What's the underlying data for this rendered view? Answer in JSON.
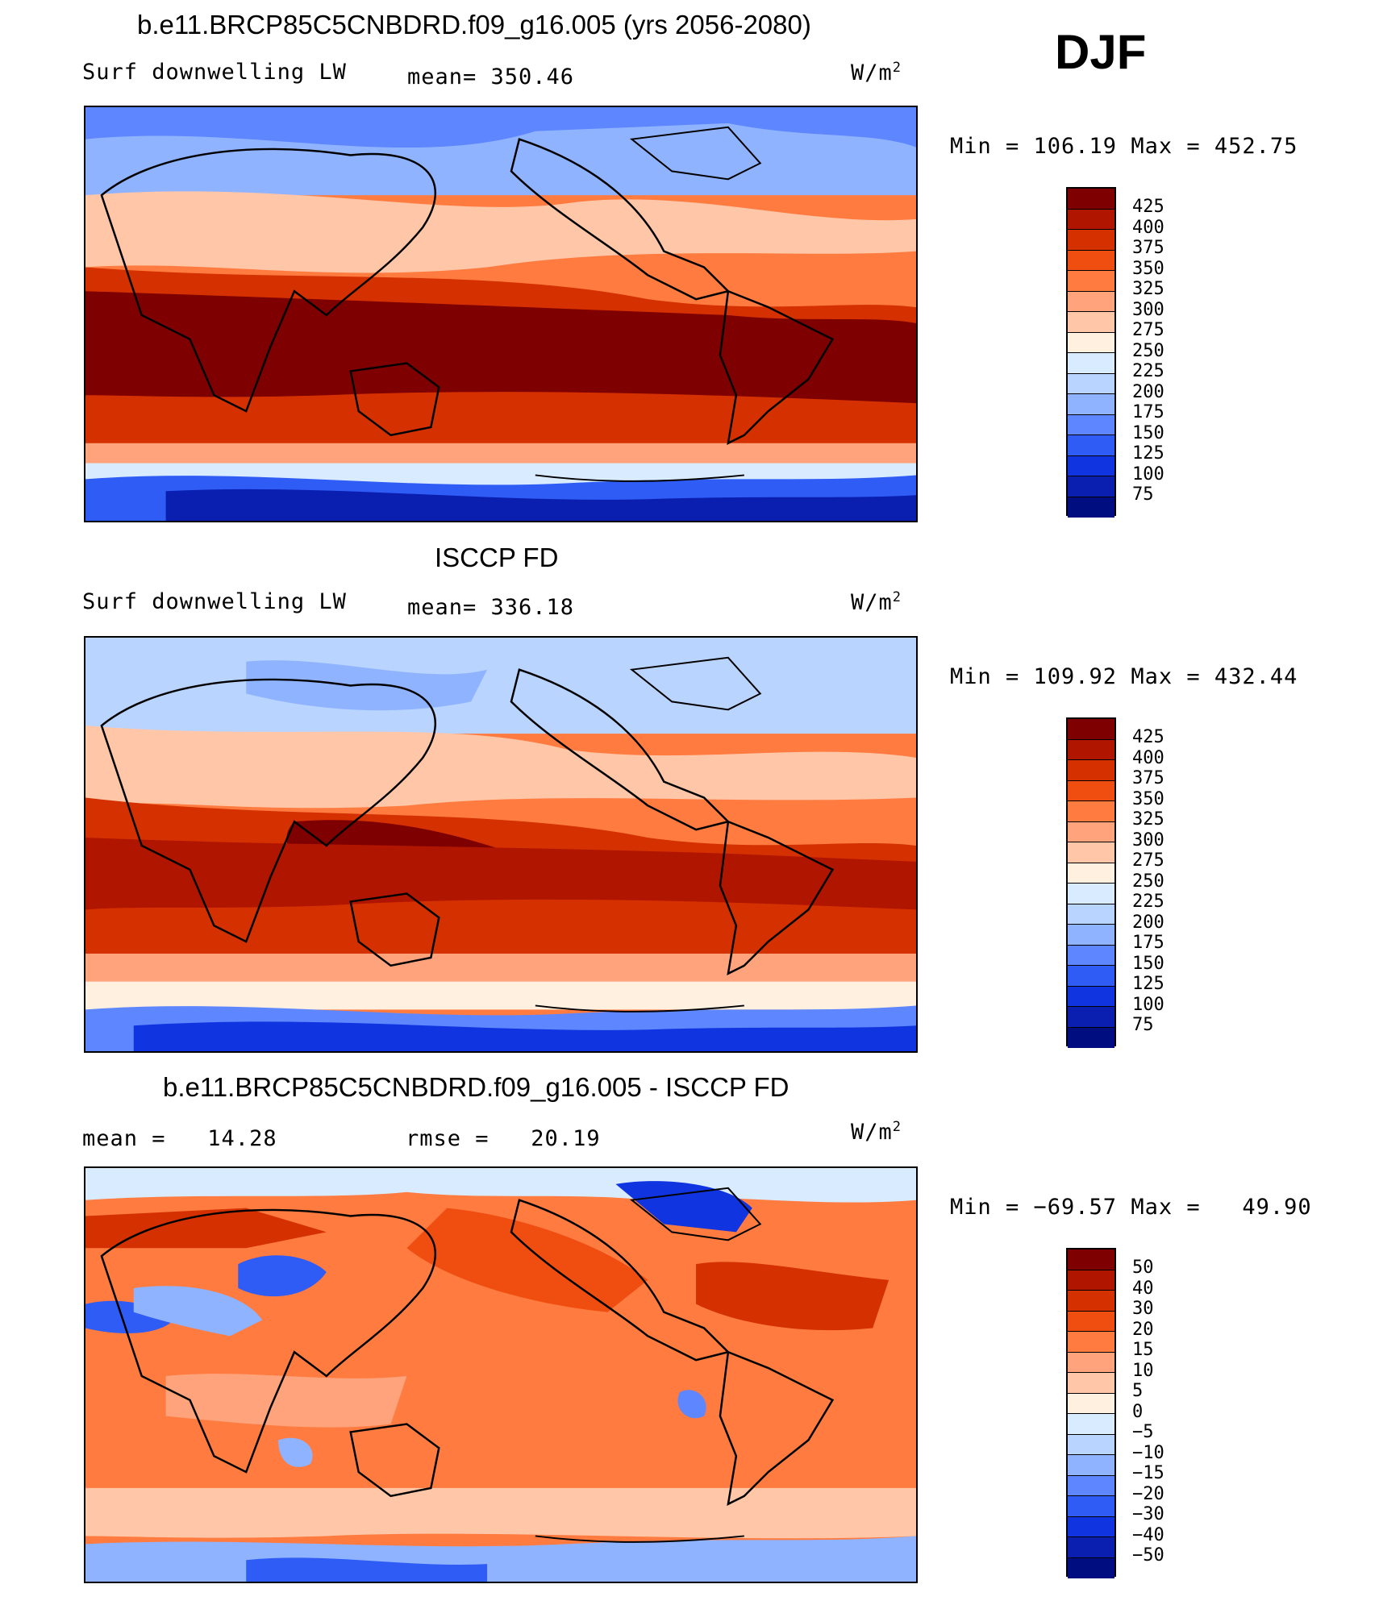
{
  "season": "DJF",
  "panels": [
    {
      "title": "b.e11.BRCP85C5CNBDRD.f09_g16.005 (yrs 2056-2080)",
      "left_label": "Surf downwelling LW",
      "center_label": "mean= 350.46",
      "units": "W/m",
      "units_sup": "2",
      "minmax": "Min = 106.19 Max = 452.75",
      "colorbar_labels": [
        "425",
        "400",
        "375",
        "350",
        "325",
        "300",
        "275",
        "250",
        "225",
        "200",
        "175",
        "150",
        "125",
        "100",
        "75"
      ]
    },
    {
      "title": "ISCCP FD",
      "left_label": "Surf downwelling LW",
      "center_label": "mean= 336.18",
      "units": "W/m",
      "units_sup": "2",
      "minmax": "Min = 109.92 Max = 432.44",
      "colorbar_labels": [
        "425",
        "400",
        "375",
        "350",
        "325",
        "300",
        "275",
        "250",
        "225",
        "200",
        "175",
        "150",
        "125",
        "100",
        "75"
      ]
    },
    {
      "title": "b.e11.BRCP85C5CNBDRD.f09_g16.005 - ISCCP FD",
      "left_label": "mean =   14.28",
      "center_label": "rmse =   20.19",
      "units": "W/m",
      "units_sup": "2",
      "minmax": "Min = −69.57 Max =   49.90",
      "colorbar_labels": [
        "50",
        "40",
        "30",
        "20",
        "15",
        "10",
        "5",
        "0",
        "−5",
        "−10",
        "−15",
        "−20",
        "−30",
        "−40",
        "−50"
      ]
    }
  ],
  "colors": {
    "scale": [
      "#7f0000",
      "#b01500",
      "#d43000",
      "#f04d10",
      "#ff7b40",
      "#ffa37d",
      "#ffc6a8",
      "#fff0e0",
      "#d9ecff",
      "#b8d4ff",
      "#8fb3ff",
      "#5d86ff",
      "#2f5cf5",
      "#1035e0",
      "#0a1fb0",
      "#000d80"
    ]
  }
}
